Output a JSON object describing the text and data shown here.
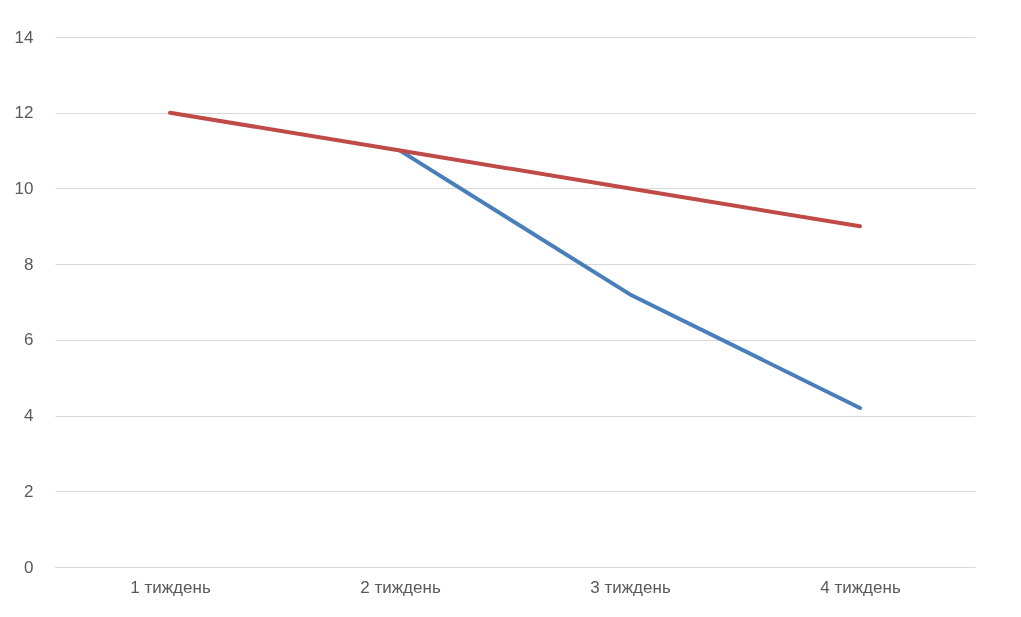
{
  "chart_data": {
    "type": "line",
    "categories": [
      "1 тиждень",
      "2 тиждень",
      "3 тиждень",
      "4 тиждень"
    ],
    "series": [
      {
        "color": "#4a7ebb",
        "values": [
          null,
          11,
          7.2,
          4.2
        ]
      },
      {
        "color": "#be4b48",
        "values": [
          12,
          11,
          10,
          9
        ]
      }
    ],
    "ylim": [
      0,
      14
    ],
    "yticks": [
      0,
      2,
      4,
      6,
      8,
      10,
      12,
      14
    ],
    "grid": "y",
    "legend": false,
    "marker": "none",
    "line_style": "solid"
  }
}
